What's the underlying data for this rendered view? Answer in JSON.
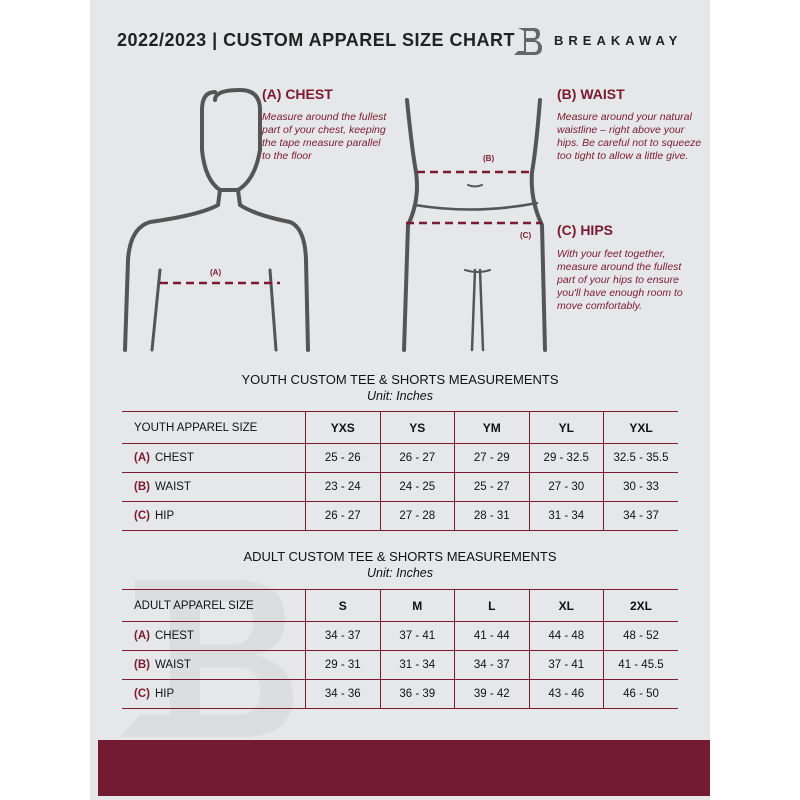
{
  "header": {
    "title": "2022/2023  |  CUSTOM APPAREL SIZE CHART",
    "brand": "BREAKAWAY"
  },
  "colors": {
    "accent": "#7a1a33",
    "background": "#e6e7e8",
    "footer": "#731b30"
  },
  "measures": {
    "chest": {
      "title": "(A) CHEST",
      "desc": "Measure around the fullest part of your chest, keeping the tape measure parallel to the floor",
      "label": "(A)"
    },
    "waist": {
      "title": "(B) WAIST",
      "desc": "Measure around your natural waistline – right above your hips. Be careful not to squeeze too tight to allow a little give.",
      "label": "(B)"
    },
    "hips": {
      "title": "(C) HIPS",
      "desc": "With your feet together, measure around the fullest part of your hips to ensure you'll have enough room to move comfortably.",
      "label": "(C)"
    }
  },
  "youth": {
    "title": "YOUTH CUSTOM TEE & SHORTS MEASUREMENTS",
    "unit": "Unit: Inches",
    "size_header": "YOUTH APPAREL SIZE",
    "sizes": [
      "YXS",
      "YS",
      "YM",
      "YL",
      "YXL"
    ],
    "rows": [
      {
        "code": "(A)",
        "name": "CHEST",
        "values": [
          "25 - 26",
          "26 - 27",
          "27 - 29",
          "29 - 32.5",
          "32.5 - 35.5"
        ]
      },
      {
        "code": "(B)",
        "name": "WAIST",
        "values": [
          "23 - 24",
          "24 - 25",
          "25 - 27",
          "27 - 30",
          "30 - 33"
        ]
      },
      {
        "code": "(C)",
        "name": "HIP",
        "values": [
          "26 - 27",
          "27 - 28",
          "28 - 31",
          "31 - 34",
          "34 - 37"
        ]
      }
    ]
  },
  "adult": {
    "title": "ADULT CUSTOM TEE & SHORTS MEASUREMENTS",
    "unit": "Unit: Inches",
    "size_header": "ADULT APPAREL SIZE",
    "sizes": [
      "S",
      "M",
      "L",
      "XL",
      "2XL"
    ],
    "rows": [
      {
        "code": "(A)",
        "name": "CHEST",
        "values": [
          "34 - 37",
          "37 - 41",
          "41 - 44",
          "44 - 48",
          "48 - 52"
        ]
      },
      {
        "code": "(B)",
        "name": "WAIST",
        "values": [
          "29 - 31",
          "31 - 34",
          "34 - 37",
          "37 - 41",
          "41 - 45.5"
        ]
      },
      {
        "code": "(C)",
        "name": "HIP",
        "values": [
          "34 - 36",
          "36 - 39",
          "39 - 42",
          "43 - 46",
          "46 - 50"
        ]
      }
    ]
  }
}
